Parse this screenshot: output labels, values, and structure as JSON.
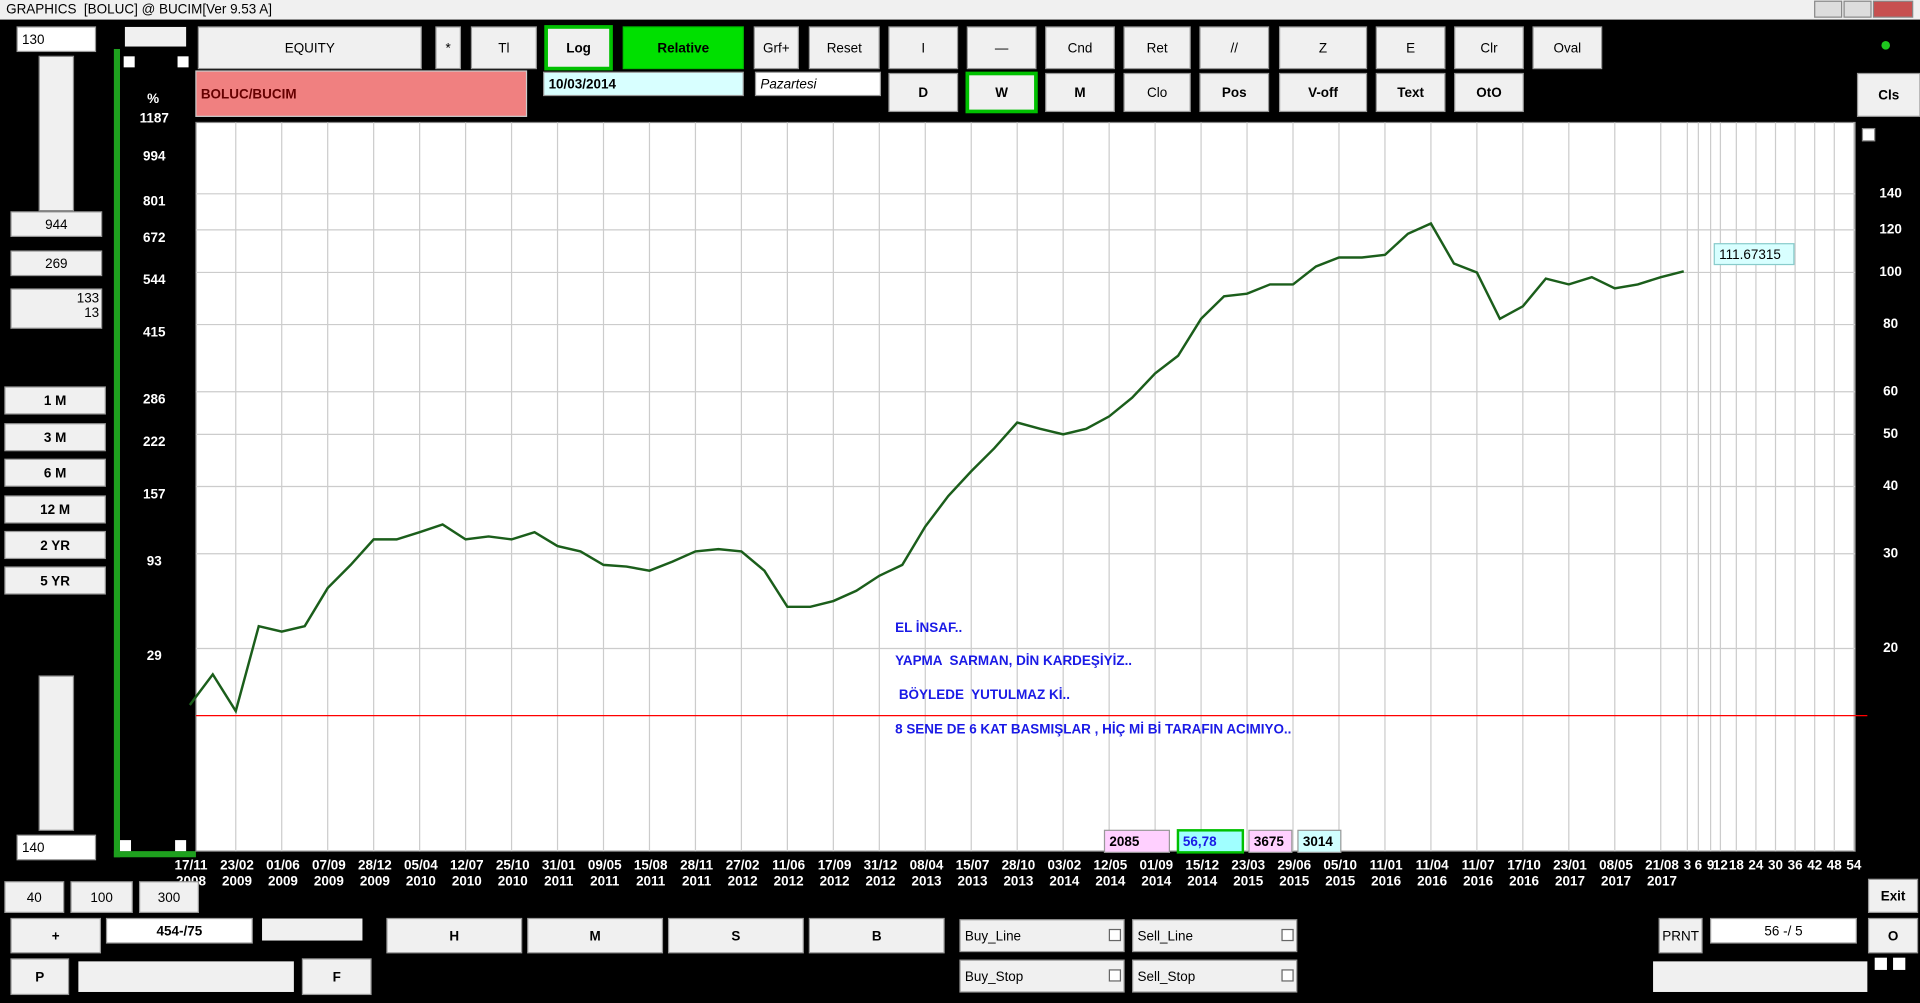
{
  "window_title": "GRAPHICS  [BOLUC] @ BUCIM[Ver 9.53 A]",
  "left_panel": {
    "top_input": "130",
    "fields": [
      "944",
      "269"
    ],
    "info": [
      "133",
      "13"
    ],
    "periods": [
      "1 M",
      "3 M",
      "6 M",
      "12 M",
      "2 YR",
      "5 YR"
    ],
    "bottom_input": "140"
  },
  "toolbar": {
    "row1": [
      "EQUITY",
      "*",
      "Tl",
      "Log",
      "Relative",
      "Grf+",
      "Reset",
      "I",
      "—",
      "Cnd",
      "Ret",
      "//",
      "Z",
      "E",
      "Clr",
      "Oval"
    ],
    "row2": [
      "D",
      "W",
      "M",
      "Clo",
      "Pos",
      "V-off",
      "Text",
      "OtO"
    ],
    "cls": "Cls"
  },
  "symbol_box": {
    "symbol": "BOLUC/BUCIM",
    "date": "10/03/2014",
    "day": "Pazartesi"
  },
  "chart_data": {
    "type": "line",
    "log_scale": true,
    "grid": true,
    "color": "#1b5e1b",
    "categories": [
      "17/11",
      null,
      "23/02",
      null,
      "01/06",
      null,
      "07/09",
      null,
      "28/12",
      null,
      "05/04",
      null,
      "12/07",
      null,
      "25/10",
      null,
      "31/01",
      null,
      "09/05",
      null,
      "15/08",
      null,
      "28/11",
      null,
      "27/02",
      null,
      "11/06",
      null,
      "17/09",
      null,
      "31/12",
      null,
      "08/04",
      null,
      "15/07",
      null,
      "28/10",
      null,
      "03/02",
      null,
      "12/05",
      null,
      "01/09",
      null,
      "15/12",
      null,
      "23/03",
      null,
      "29/06",
      null,
      "05/10",
      null,
      "11/01",
      null,
      "11/04",
      null,
      "11/07",
      null,
      "17/10",
      null,
      "23/01",
      null,
      "08/05",
      null,
      "21/08",
      null
    ],
    "years": [
      "2008",
      null,
      "2009",
      null,
      "2009",
      null,
      "2009",
      null,
      "2009",
      null,
      "2010",
      null,
      "2010",
      null,
      "2010",
      null,
      "2011",
      null,
      "2011",
      null,
      "2011",
      null,
      "2011",
      null,
      "2012",
      null,
      "2012",
      null,
      "2012",
      null,
      "2012",
      null,
      "2013",
      null,
      "2013",
      null,
      "2013",
      null,
      "2014",
      null,
      "2014",
      null,
      "2014",
      null,
      "2014",
      null,
      "2015",
      null,
      "2015",
      null,
      "2015",
      null,
      "2016",
      null,
      "2016",
      null,
      "2016",
      null,
      "2016",
      null,
      "2017",
      null,
      "2017",
      null,
      "2017",
      null
    ],
    "values": [
      15.7,
      17.9,
      15.3,
      22.0,
      21.5,
      22.0,
      25.9,
      28.6,
      31.9,
      31.9,
      32.9,
      34.0,
      31.9,
      32.3,
      31.9,
      32.9,
      31.0,
      30.3,
      28.6,
      28.4,
      27.9,
      29.0,
      30.3,
      30.6,
      30.3,
      27.9,
      23.9,
      23.9,
      24.5,
      25.6,
      27.3,
      28.6,
      33.7,
      38.4,
      42.7,
      47.1,
      52.6,
      51.2,
      50.0,
      51.2,
      54.0,
      58.5,
      64.9,
      70.0,
      82.0,
      90.3,
      91.3,
      95.0,
      95.0,
      102.6,
      106.6,
      106.6,
      107.8,
      118.0,
      123.3,
      103.9,
      100.0,
      82.0,
      86.5,
      97.4,
      95.0,
      98.0,
      93.4,
      95.0,
      98.0,
      100.5
    ],
    "ylim": [
      8.4,
      190
    ],
    "yticks": [
      20,
      30,
      40,
      50,
      60,
      80,
      100,
      120,
      140
    ],
    "y2_label": "%",
    "y2lim": [
      -44,
      1167
    ],
    "y2ticks": [
      29,
      93,
      157,
      222,
      286,
      415,
      544,
      672,
      801,
      994,
      1187
    ],
    "reference_line": 15,
    "reference_color": "#ff0000",
    "last_price_label": "111.67315",
    "forecast_labels": [
      "3",
      "6",
      "9",
      "12",
      "18",
      "24",
      "30",
      "36",
      "42",
      "48",
      "54"
    ],
    "annotations": [
      "EL İNSAF..",
      "YAPMA  SARMAN, DİN KARDEŞİYİZ..",
      " BÖYLEDE  YUTULMAZ Kİ..",
      "8 SENE DE 6 KAT BASMIŞLAR , HİÇ Mİ Bİ TARAFIN ACIMIYO.."
    ]
  },
  "bottom_stats": [
    "2085",
    "56,78",
    "3675",
    "3014"
  ],
  "bottom_panel": {
    "zoom": [
      "40",
      "100",
      "300"
    ],
    "plus": "+",
    "range": "454-/75",
    "p": "P",
    "f": "F",
    "hmsb": [
      "H",
      "M",
      "S",
      "B"
    ],
    "orders": [
      "Buy_Line",
      "Sell_Line",
      "Buy_Stop",
      "Sell_Stop"
    ],
    "prnt": "PRNT",
    "ratio": "56 -/ 5",
    "exit": "Exit",
    "o": "O"
  }
}
